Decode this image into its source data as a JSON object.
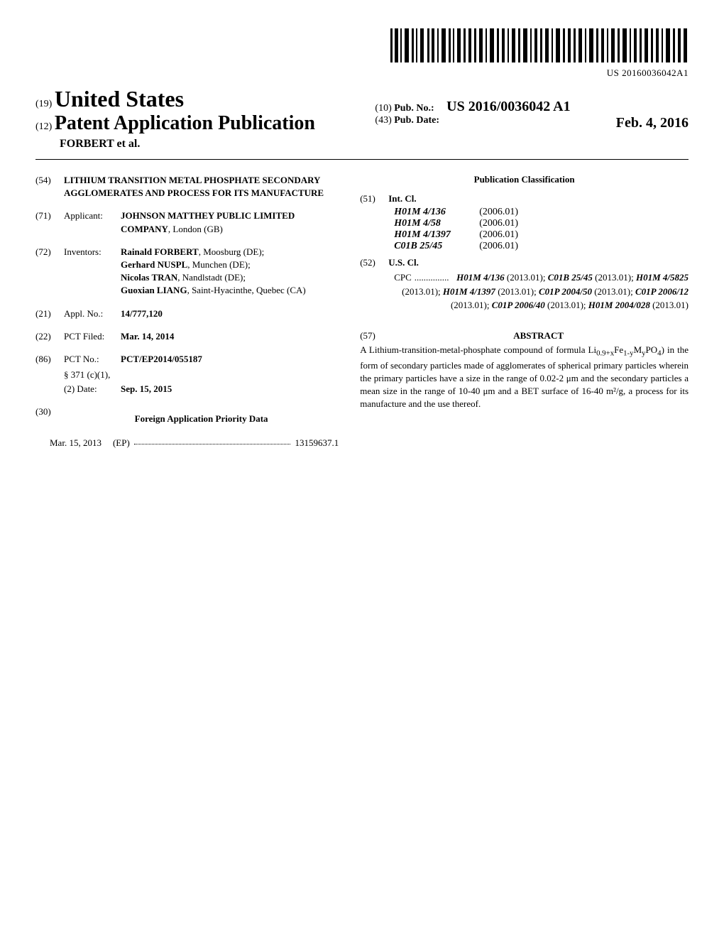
{
  "barcode_number": "US 20160036042A1",
  "header": {
    "code_19": "(19)",
    "country": "United States",
    "code_12": "(12)",
    "pub_title": "Patent Application Publication",
    "authors": "FORBERT et al.",
    "code_10": "(10)",
    "pub_no_label": "Pub. No.:",
    "pub_no": "US 2016/0036042 A1",
    "code_43": "(43)",
    "pub_date_label": "Pub. Date:",
    "pub_date": "Feb. 4, 2016"
  },
  "left": {
    "f54": {
      "code": "(54)",
      "title": "LITHIUM TRANSITION METAL PHOSPHATE SECONDARY AGGLOMERATES AND PROCESS FOR ITS MANUFACTURE"
    },
    "f71": {
      "code": "(71)",
      "label": "Applicant:",
      "value": "JOHNSON MATTHEY PUBLIC LIMITED COMPANY",
      "location": ", London (GB)"
    },
    "f72": {
      "code": "(72)",
      "label": "Inventors:",
      "inv1": "Rainald FORBERT",
      "loc1": ", Moosburg (DE);",
      "inv2": "Gerhard NUSPL",
      "loc2": ", Munchen (DE);",
      "inv3": "Nicolas TRAN",
      "loc3": ", Nandlstadt (DE);",
      "inv4": "Guoxian LIANG",
      "loc4": ", Saint-Hyacinthe, Quebec (CA)"
    },
    "f21": {
      "code": "(21)",
      "label": "Appl. No.:",
      "value": "14/777,120"
    },
    "f22": {
      "code": "(22)",
      "label": "PCT Filed:",
      "value": "Mar. 14, 2014"
    },
    "f86": {
      "code": "(86)",
      "label": "PCT No.:",
      "value": "PCT/EP2014/055187",
      "sub1_label": "§ 371 (c)(1),",
      "sub2_label": "(2) Date:",
      "sub2_value": "Sep. 15, 2015"
    },
    "f30": {
      "code": "(30)",
      "title": "Foreign Application Priority Data",
      "date": "Mar. 15, 2013",
      "country": "(EP)",
      "number": "13159637.1"
    }
  },
  "right": {
    "class_title": "Publication Classification",
    "f51": {
      "code": "(51)",
      "label": "Int. Cl.",
      "items": [
        {
          "code": "H01M 4/136",
          "date": "(2006.01)"
        },
        {
          "code": "H01M 4/58",
          "date": "(2006.01)"
        },
        {
          "code": "H01M 4/1397",
          "date": "(2006.01)"
        },
        {
          "code": "C01B 25/45",
          "date": "(2006.01)"
        }
      ]
    },
    "f52": {
      "code": "(52)",
      "label": "U.S. Cl.",
      "cpc_label": "CPC",
      "cpc_text": "H01M 4/136 (2013.01); C01B 25/45 (2013.01); H01M 4/5825 (2013.01); H01M 4/1397 (2013.01); C01P 2004/50 (2013.01); C01P 2006/12 (2013.01); C01P 2006/40 (2013.01); H01M 2004/028 (2013.01)"
    },
    "f57": {
      "code": "(57)",
      "label": "ABSTRACT",
      "text_pre": "A Lithium-transition-metal-phosphate compound of formula Li",
      "sub1": "0.9+x",
      "text_mid1": "Fe",
      "sub2": "1-y",
      "text_mid2": "M",
      "sub3": "y",
      "text_mid3": "PO",
      "sub4": "4",
      "text_post": ") in the form of secondary particles made of agglomerates of spherical primary particles wherein the primary particles have a size in the range of 0.02-2 μm and the secondary particles a mean size in the range of 10-40 μm and a BET surface of 16-40 m²/g, a process for its manufacture and the use thereof."
    }
  }
}
